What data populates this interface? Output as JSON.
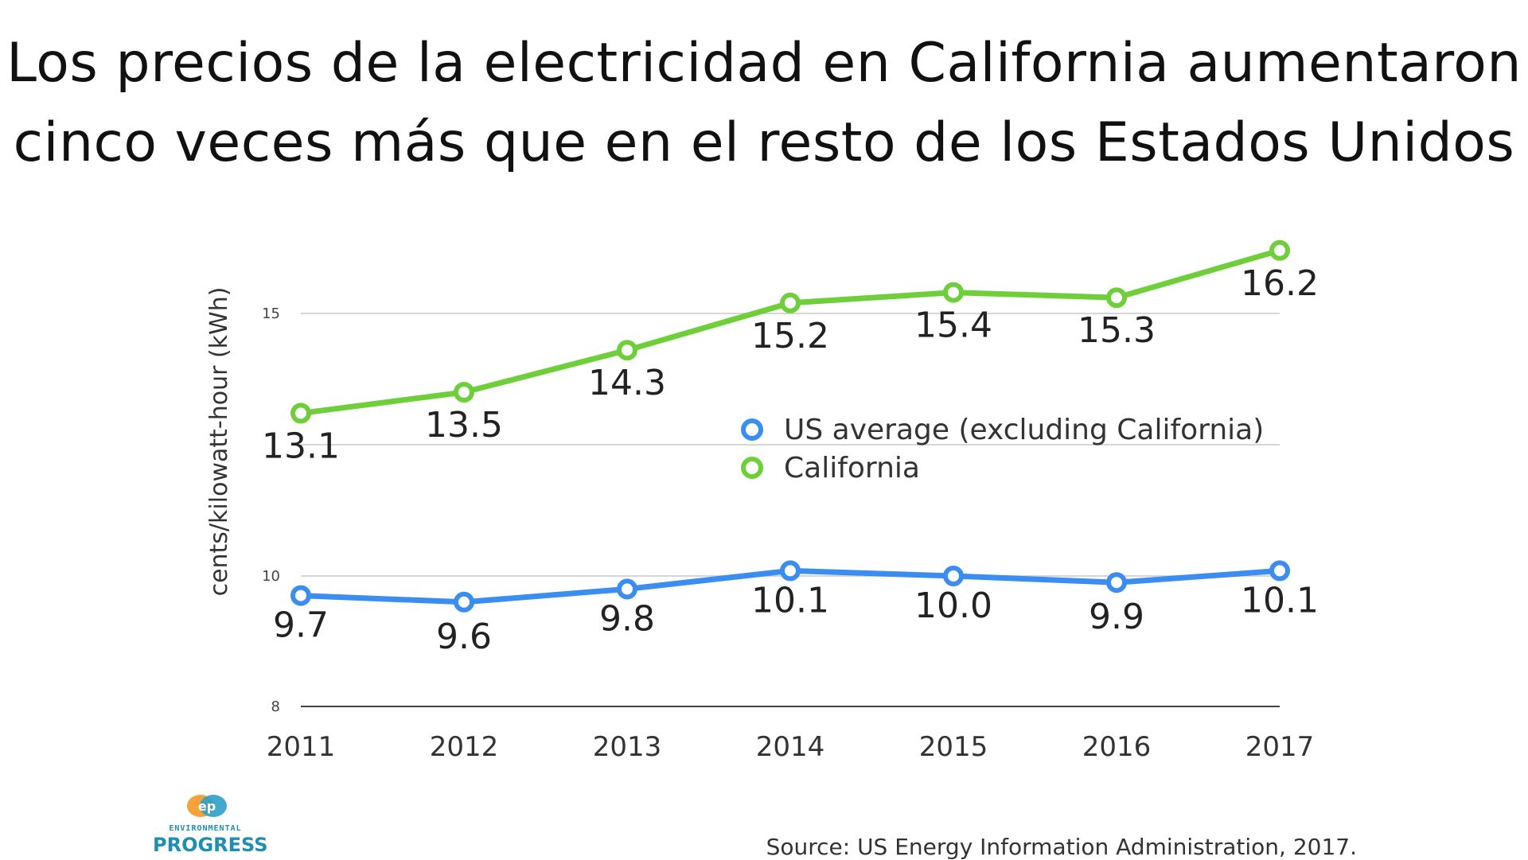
{
  "title": {
    "line1": "Los precios de la electricidad en California aumentaron",
    "line2": "cinco veces más que en el resto de los Estados Unidos"
  },
  "source": "Source: US Energy Information Administration, 2017.",
  "logo": {
    "small_text": "ENVIRONMENTAL",
    "big_text": "PROGRESS",
    "icon": "ep-logo-icon"
  },
  "colors": {
    "california": "#6fcf3a",
    "us": "#3b8ef0",
    "grid": "#d6d6d6",
    "axis": "#444444"
  },
  "chart_data": {
    "type": "line",
    "title": "",
    "xlabel": "",
    "ylabel": "cents/kilowatt-hour (kWh)",
    "categories": [
      "2011",
      "2012",
      "2013",
      "2014",
      "2015",
      "2016",
      "2017"
    ],
    "ylim": [
      8,
      17.5
    ],
    "yticks": [
      8,
      10,
      15
    ],
    "ytick_labels": [
      "8",
      "10",
      "15"
    ],
    "grid": true,
    "legend_position": "center-right",
    "series": [
      {
        "name": "US average (excluding California)",
        "values": [
          9.7,
          9.6,
          9.8,
          10.1,
          10.0,
          9.9,
          10.1
        ],
        "labels": [
          "9.7",
          "9.6",
          "9.8",
          "10.1",
          "10.0",
          "9.9",
          "10.1"
        ]
      },
      {
        "name": "California",
        "values": [
          13.1,
          13.5,
          14.3,
          15.2,
          15.4,
          15.3,
          16.2
        ],
        "labels": [
          "13.1",
          "13.5",
          "14.3",
          "15.2",
          "15.4",
          "15.3",
          "16.2"
        ]
      }
    ]
  }
}
